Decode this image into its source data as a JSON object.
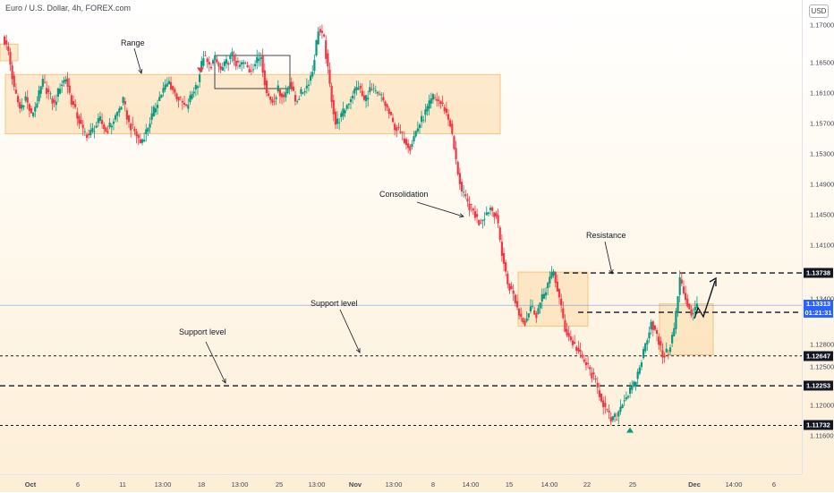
{
  "title": "Euro / U.S. Dollar, 4h, FOREX.com",
  "currency": "USD",
  "chart_data": {
    "type": "candlestick",
    "title": "Euro / U.S. Dollar, 4h, FOREX.com",
    "ylim": [
      1.1109,
      1.1733
    ],
    "y_ticks": [
      "1.17000",
      "1.16500",
      "1.16100",
      "1.15700",
      "1.15300",
      "1.14900",
      "1.14500",
      "1.14100",
      "1.13400",
      "1.12800",
      "1.12500",
      "1.12000",
      "1.11600"
    ],
    "x_ticks": [
      {
        "label": "Oct",
        "bold": true
      },
      {
        "label": "6"
      },
      {
        "label": "11"
      },
      {
        "label": "13:00"
      },
      {
        "label": "18"
      },
      {
        "label": "13:00"
      },
      {
        "label": "25"
      },
      {
        "label": "13:00"
      },
      {
        "label": "Nov",
        "bold": true
      },
      {
        "label": "13:00"
      },
      {
        "label": "8"
      },
      {
        "label": "14:00"
      },
      {
        "label": "15"
      },
      {
        "label": "14:00"
      },
      {
        "label": "22"
      },
      {
        "label": "25"
      },
      {
        "label": "Dec",
        "bold": true
      },
      {
        "label": "14:00"
      },
      {
        "label": "6"
      }
    ],
    "levels": [
      {
        "price": 1.13738,
        "label": "1.13738",
        "style": "dashed-bold"
      },
      {
        "price": 1.1322,
        "label": "1.13220",
        "style": "dashed-bold"
      },
      {
        "price": 1.12647,
        "label": "1.12647",
        "style": "dashed"
      },
      {
        "price": 1.12253,
        "label": "1.12253",
        "style": "dashed-bold"
      },
      {
        "price": 1.11732,
        "label": "1.11732",
        "style": "dashed"
      }
    ],
    "current": {
      "price": 1.13313,
      "label": "1.13313",
      "countdown": "01:21:31"
    },
    "zones": [
      {
        "from": 1.1557,
        "to": 1.1635
      },
      {
        "from": 1.1304,
        "to": 1.1375
      },
      {
        "from": 1.1266,
        "to": 1.1333
      },
      {
        "from": 1.1653,
        "to": 1.1675
      }
    ],
    "path": [
      1.1685,
      1.1665,
      1.1615,
      1.159,
      1.1605,
      1.158,
      1.16,
      1.1625,
      1.161,
      1.1595,
      1.162,
      1.163,
      1.16,
      1.158,
      1.156,
      1.1555,
      1.1565,
      1.1575,
      1.156,
      1.157,
      1.1585,
      1.16,
      1.157,
      1.156,
      1.1545,
      1.156,
      1.158,
      1.16,
      1.1615,
      1.1625,
      1.161,
      1.16,
      1.159,
      1.161,
      1.1625,
      1.166,
      1.1645,
      1.1655,
      1.164,
      1.165,
      1.166,
      1.1645,
      1.165,
      1.164,
      1.165,
      1.166,
      1.161,
      1.16,
      1.1615,
      1.1605,
      1.1625,
      1.16,
      1.161,
      1.162,
      1.164,
      1.1695,
      1.168,
      1.162,
      1.157,
      1.158,
      1.1595,
      1.161,
      1.162,
      1.16,
      1.1615,
      1.161,
      1.1605,
      1.159,
      1.157,
      1.156,
      1.155,
      1.154,
      1.156,
      1.1575,
      1.159,
      1.1605,
      1.16,
      1.159,
      1.157,
      1.152,
      1.148,
      1.1465,
      1.1455,
      1.144,
      1.145,
      1.146,
      1.145,
      1.14,
      1.136,
      1.1345,
      1.132,
      1.131,
      1.133,
      1.132,
      1.134,
      1.136,
      1.1375,
      1.134,
      1.13,
      1.1285,
      1.1275,
      1.126,
      1.125,
      1.1235,
      1.1215,
      1.1195,
      1.118,
      1.1185,
      1.1205,
      1.1215,
      1.1225,
      1.125,
      1.128,
      1.131,
      1.129,
      1.1265,
      1.127,
      1.13,
      1.1365,
      1.134,
      1.132,
      1.133
    ],
    "markers": [
      {
        "type": "down-arrow",
        "price": 1.1637
      },
      {
        "type": "up-arrow",
        "price": 1.1166
      }
    ]
  },
  "annotations": {
    "range": "Range",
    "consolidation": "Consolidation",
    "resistance": "Resistance",
    "support_level_upper": "Support level",
    "support_level_lower": "Support level"
  },
  "colors": {
    "up": "#089981",
    "down": "#f23645",
    "zone": "#fbd9a6",
    "zone_border": "#f5b868",
    "text": "#131722",
    "current": "#2962ff"
  }
}
